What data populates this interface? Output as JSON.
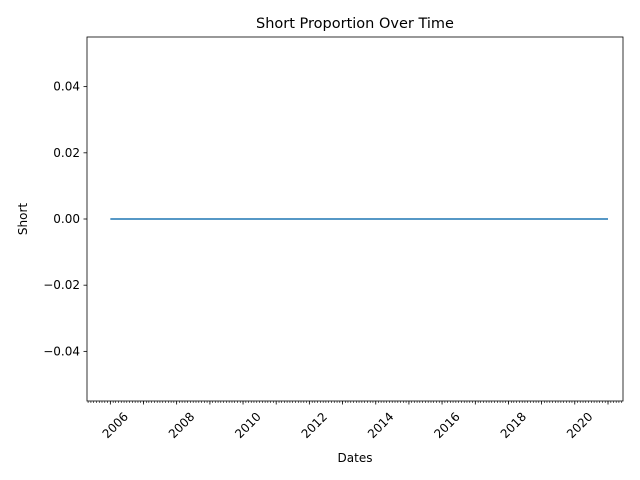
{
  "chart_data": {
    "type": "line",
    "title": "Short Proportion Over Time",
    "xlabel": "Dates",
    "ylabel": "Short",
    "x_range": [
      "2005-04-19",
      "2021-06-15"
    ],
    "y_range": [
      -0.055,
      0.055
    ],
    "x_ticks": [
      "2006",
      "2008",
      "2010",
      "2012",
      "2014",
      "2016",
      "2018",
      "2020"
    ],
    "y_ticks": [
      "0.04",
      "0.02",
      "0.00",
      "−0.02",
      "−0.04"
    ],
    "series": [
      {
        "color": "#1f77b4",
        "points": [
          {
            "x": "2006-01-01",
            "y": 0.0
          },
          {
            "x": "2021-01-01",
            "y": 0.0
          }
        ]
      }
    ],
    "grid": false,
    "legend": "none"
  }
}
